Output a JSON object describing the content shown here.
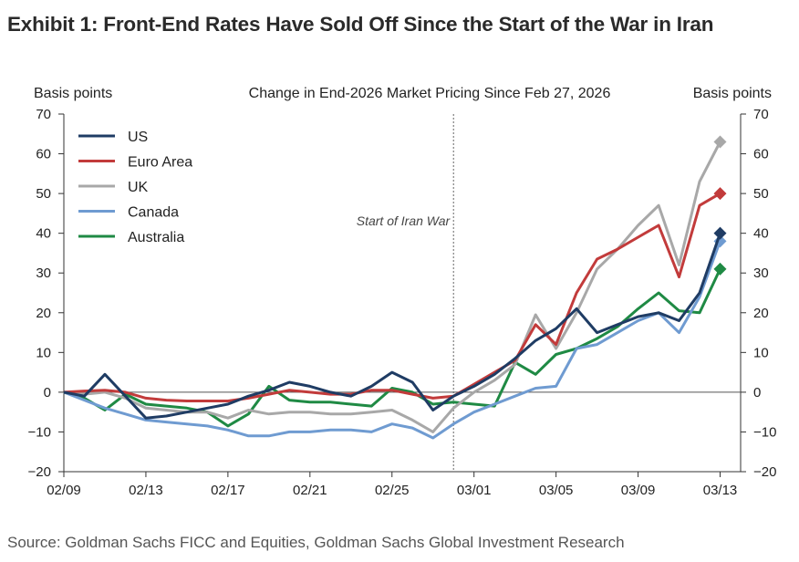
{
  "exhibit": {
    "title": "Exhibit 1: Front-End Rates Have Sold Off Since the Start of the War in Iran",
    "source": "Source: Goldman Sachs FICC and Equities, Goldman Sachs Global Investment Research"
  },
  "chart_data": {
    "type": "line",
    "title": "Change in End-2026 Market Pricing Since Feb 27, 2026",
    "ylabel_left": "Basis points",
    "ylabel_right": "Basis points",
    "ylim": [
      -20,
      70
    ],
    "yticks": [
      -20,
      -10,
      0,
      10,
      20,
      30,
      40,
      50,
      60,
      70
    ],
    "ytick_labels": [
      "−20",
      "−10",
      "0",
      "10",
      "20",
      "30",
      "40",
      "50",
      "60",
      "70"
    ],
    "xlim": [
      0,
      33
    ],
    "xtick_positions": [
      0,
      4,
      8,
      12,
      16,
      20,
      24,
      28,
      32
    ],
    "xtick_labels": [
      "02/09",
      "02/13",
      "02/17",
      "02/21",
      "02/25",
      "03/01",
      "03/05",
      "03/09",
      "03/13"
    ],
    "event_line": {
      "x": 19,
      "label": "Start of Iran War"
    },
    "legend": {
      "position": "top-left"
    },
    "series": [
      {
        "name": "US",
        "color": "#1f3c64",
        "x": [
          0,
          1,
          2,
          3,
          4,
          5,
          6,
          7,
          8,
          9,
          10,
          11,
          12,
          13,
          14,
          15,
          16,
          17,
          18,
          19,
          20,
          21,
          22,
          23,
          24,
          25,
          26,
          27,
          28,
          29,
          30,
          31
        ],
        "values": [
          0,
          -1,
          4.5,
          -1,
          -6.5,
          -6,
          -5,
          -4,
          -3,
          -1,
          0.5,
          2.5,
          1.5,
          0,
          -1,
          1.5,
          5,
          2.5,
          -4.5,
          -1,
          1.5,
          4.5,
          8.5,
          13,
          16,
          21,
          15,
          17,
          19,
          20,
          18,
          25
        ],
        "end_marker": 40
      },
      {
        "name": "Euro Area",
        "color": "#c23b3b",
        "x": [
          0,
          1,
          2,
          3,
          4,
          5,
          6,
          7,
          8,
          9,
          10,
          11,
          12,
          13,
          14,
          15,
          16,
          17,
          18,
          19,
          20,
          21,
          22,
          23,
          24,
          25,
          26,
          27,
          28,
          29,
          30,
          31
        ],
        "values": [
          0,
          0.3,
          0.5,
          0,
          -1.5,
          -2,
          -2.2,
          -2.2,
          -2.2,
          -1.5,
          -0.5,
          0.5,
          0,
          -0.5,
          -0.5,
          0.5,
          0.5,
          -0.5,
          -1.5,
          -1,
          2,
          5,
          8,
          17,
          12,
          25,
          33.5,
          36,
          39,
          42,
          29,
          47
        ],
        "end_marker": 50
      },
      {
        "name": "UK",
        "color": "#a8a8a8",
        "x": [
          0,
          1,
          2,
          3,
          4,
          5,
          6,
          7,
          8,
          9,
          10,
          11,
          12,
          13,
          14,
          15,
          16,
          17,
          18,
          19,
          20,
          21,
          22,
          23,
          24,
          25,
          26,
          27,
          28,
          29,
          30,
          31
        ],
        "values": [
          0,
          -0.5,
          0,
          -1.5,
          -4,
          -4.5,
          -5,
          -5,
          -6.5,
          -4.5,
          -5.5,
          -5,
          -5,
          -5.5,
          -5.5,
          -5,
          -4.5,
          -7,
          -10,
          -4,
          0,
          3,
          7,
          19.5,
          11,
          20,
          31,
          36,
          42,
          47,
          32,
          53
        ],
        "end_marker": 63
      },
      {
        "name": "Canada",
        "color": "#6f9bd1",
        "x": [
          0,
          1,
          2,
          3,
          4,
          5,
          6,
          7,
          8,
          9,
          10,
          11,
          12,
          13,
          14,
          15,
          16,
          17,
          18,
          19,
          20,
          21,
          22,
          23,
          24,
          25,
          26,
          27,
          28,
          29,
          30,
          31
        ],
        "values": [
          0,
          -2,
          -4,
          -5.5,
          -7,
          -7.5,
          -8,
          -8.5,
          -9.5,
          -11,
          -11,
          -10,
          -10,
          -9.5,
          -9.5,
          -10,
          -8,
          -9,
          -11.5,
          -8,
          -5,
          -3,
          -1,
          1,
          1.5,
          11,
          12,
          15,
          18,
          20,
          15,
          24
        ],
        "end_marker": 38
      },
      {
        "name": "Australia",
        "color": "#1f8a44",
        "x": [
          0,
          1,
          2,
          3,
          4,
          5,
          6,
          7,
          8,
          9,
          10,
          11,
          12,
          13,
          14,
          15,
          16,
          17,
          18,
          19,
          20,
          21,
          22,
          23,
          24,
          25,
          26,
          27,
          28,
          29,
          30,
          31
        ],
        "values": [
          0,
          -1.5,
          -4.5,
          -0.5,
          -3,
          -3.5,
          -4,
          -5,
          -8.5,
          -5.5,
          1.5,
          -2,
          -2.5,
          -2.5,
          -3,
          -3.5,
          1,
          0,
          -3,
          -2.5,
          -3,
          -3.5,
          7.5,
          4.5,
          9.5,
          11,
          13.5,
          16.5,
          21,
          25,
          20.5,
          20
        ],
        "end_marker": 31
      }
    ]
  }
}
